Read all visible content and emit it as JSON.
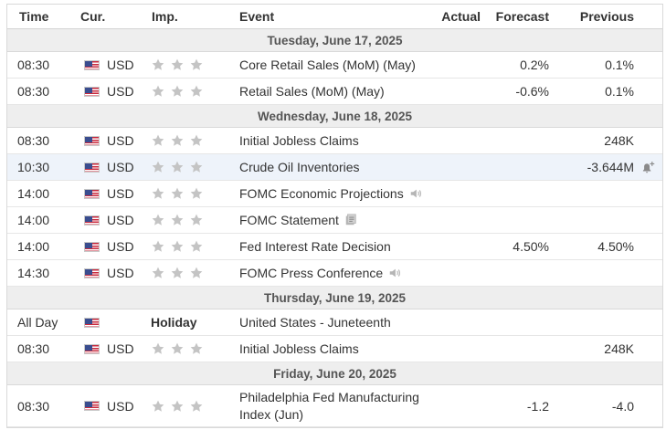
{
  "columns": {
    "time": "Time",
    "currency": "Cur.",
    "importance": "Imp.",
    "event": "Event",
    "actual": "Actual",
    "forecast": "Forecast",
    "previous": "Previous"
  },
  "colors": {
    "star": "#c4c4c4",
    "date_row_bg": "#eeeeee",
    "highlight_row_bg": "#eef3fa"
  },
  "days": [
    {
      "date": "Tuesday, June 17, 2025",
      "events": [
        {
          "time": "08:30",
          "currency": "USD",
          "importance_stars": 3,
          "event": "Core Retail Sales (MoM) (May)",
          "actual": "",
          "forecast": "0.2%",
          "previous": "0.1%"
        },
        {
          "time": "08:30",
          "currency": "USD",
          "importance_stars": 3,
          "event": "Retail Sales (MoM) (May)",
          "actual": "",
          "forecast": "-0.6%",
          "previous": "0.1%"
        }
      ]
    },
    {
      "date": "Wednesday, June 18, 2025",
      "events": [
        {
          "time": "08:30",
          "currency": "USD",
          "importance_stars": 3,
          "event": "Initial Jobless Claims",
          "actual": "",
          "forecast": "",
          "previous": "248K"
        },
        {
          "time": "10:30",
          "currency": "USD",
          "importance_stars": 3,
          "event": "Crude Oil Inventories",
          "actual": "",
          "forecast": "",
          "previous": "-3.644M",
          "icon": "bell-plus-icon"
        },
        {
          "time": "14:00",
          "currency": "USD",
          "importance_stars": 3,
          "event": "FOMC Economic Projections",
          "event_icon": "speaker-icon",
          "actual": "",
          "forecast": "",
          "previous": ""
        },
        {
          "time": "14:00",
          "currency": "USD",
          "importance_stars": 3,
          "event": "FOMC Statement",
          "event_icon": "document-icon",
          "actual": "",
          "forecast": "",
          "previous": ""
        },
        {
          "time": "14:00",
          "currency": "USD",
          "importance_stars": 3,
          "event": "Fed Interest Rate Decision",
          "actual": "",
          "forecast": "4.50%",
          "previous": "4.50%"
        },
        {
          "time": "14:30",
          "currency": "USD",
          "importance_stars": 3,
          "event": "FOMC Press Conference",
          "event_icon": "speaker-icon",
          "actual": "",
          "forecast": "",
          "previous": ""
        }
      ]
    },
    {
      "date": "Thursday, June 19, 2025",
      "events": [
        {
          "time": "All Day",
          "currency": "",
          "holiday": "Holiday",
          "event": "United States - Juneteenth",
          "actual": "",
          "forecast": "",
          "previous": ""
        },
        {
          "time": "08:30",
          "currency": "USD",
          "importance_stars": 3,
          "event": "Initial Jobless Claims",
          "actual": "",
          "forecast": "",
          "previous": "248K"
        }
      ]
    },
    {
      "date": "Friday, June 20, 2025",
      "events": [
        {
          "time": "08:30",
          "currency": "USD",
          "importance_stars": 3,
          "event": "Philadelphia Fed Manufacturing Index (Jun)",
          "actual": "",
          "forecast": "-1.2",
          "previous": "-4.0"
        }
      ]
    }
  ]
}
